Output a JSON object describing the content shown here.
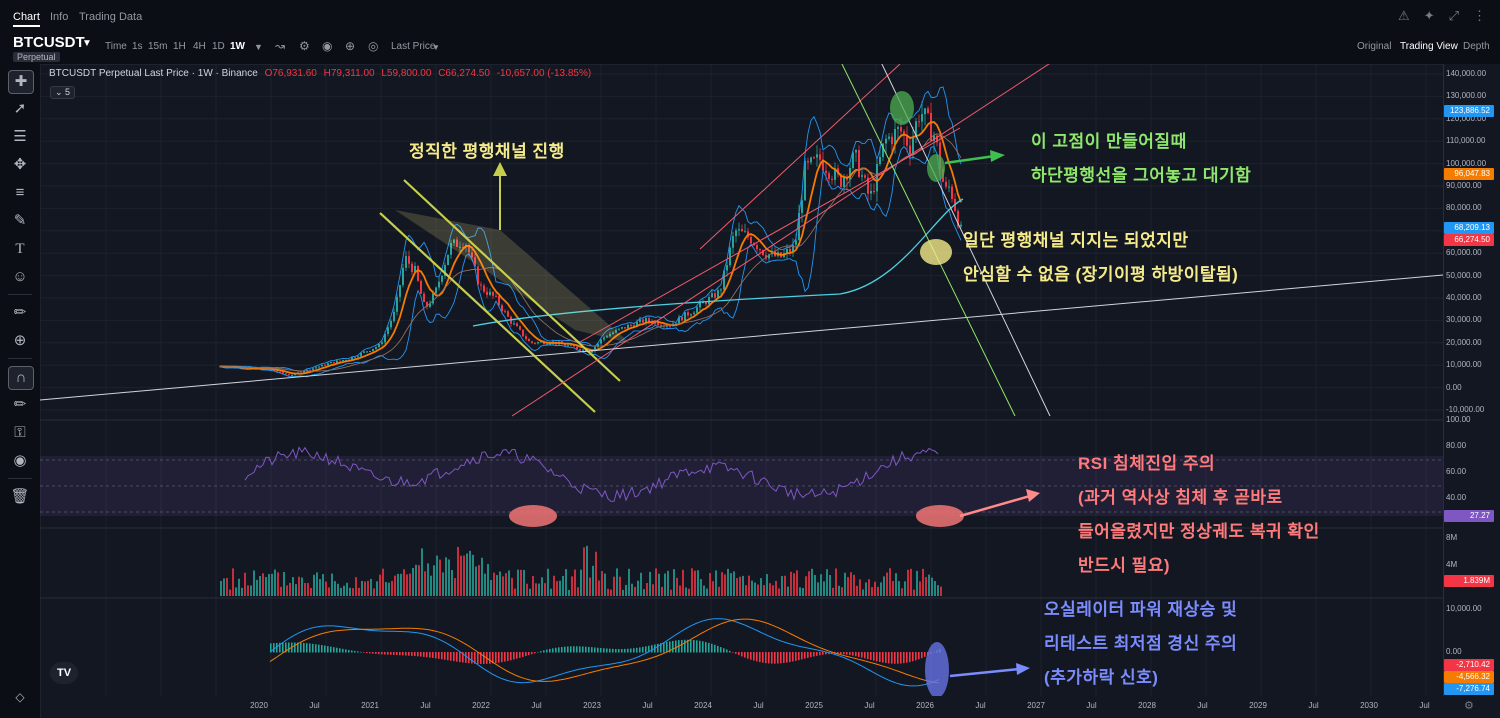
{
  "tabs": [
    {
      "label": "Chart"
    },
    {
      "label": "Info"
    },
    {
      "label": "Trading Data"
    }
  ],
  "header_icons": [
    "bell-icon",
    "sparkle-icon",
    "expand-icon",
    "more-icon"
  ],
  "toolbar": {
    "symbol": "BTCUSDT",
    "badge": "Perpetual",
    "time_label": "Time",
    "intervals": [
      "1s",
      "15m",
      "1H",
      "4H",
      "1D",
      "1W"
    ],
    "active_interval": "1W",
    "price_type": "Last Price",
    "views": [
      "Original",
      "Trading View",
      "Depth"
    ],
    "active_view": "Trading View"
  },
  "legend": {
    "title": "BTCUSDT Perpetual Last Price · 1W · Binance",
    "open": "O76,931.60",
    "high": "H79,311.00",
    "low": "L59,800.00",
    "close": "C66,274.50",
    "change": "-10,657.00 (-13.85%)",
    "indicator_count": "5"
  },
  "price_axis": {
    "ticks": [
      "140,000.00",
      "130,000.00",
      "120,000.00",
      "110,000.00",
      "100,000.00",
      "90,000.00",
      "80,000.00",
      "70,000.00",
      "60,000.00",
      "50,000.00",
      "40,000.00",
      "30,000.00",
      "20,000.00",
      "10,000.00",
      "0.00",
      "-10,000.00"
    ],
    "badges": [
      {
        "value": "123,886.52",
        "color": "#2196f3"
      },
      {
        "value": "96,047.83",
        "color": "#f57c00"
      },
      {
        "value": "68,209.13",
        "color": "#2196f3"
      },
      {
        "value": "66,274.50",
        "color": "#f23645"
      }
    ]
  },
  "rsi_axis": {
    "ticks": [
      "100.00",
      "80.00",
      "60.00",
      "40.00"
    ],
    "badge": "27.27",
    "badge_color": "#7e57c2"
  },
  "volume_axis": {
    "ticks": [
      "8M",
      "4M"
    ],
    "badge": "1.839M",
    "badge_color": "#f23645"
  },
  "osc_axis": {
    "ticks": [
      "10,000.00",
      "0.00"
    ],
    "badges": [
      {
        "value": "-2,710.42",
        "color": "#f23645"
      },
      {
        "value": "-4,566.32",
        "color": "#f57c00"
      },
      {
        "value": "-7,276.74",
        "color": "#2196f3"
      }
    ]
  },
  "date_axis": [
    "2020",
    "Jul",
    "2021",
    "Jul",
    "2022",
    "Jul",
    "2023",
    "Jul",
    "2024",
    "Jul",
    "2025",
    "Jul",
    "2026",
    "Jul",
    "2027",
    "Jul",
    "2028",
    "Jul",
    "2029",
    "Jul",
    "2030",
    "Jul"
  ],
  "annotations": {
    "channel_note": "정직한 평행채널 진행",
    "high_note_1": "이 고점이 만들어질때",
    "high_note_2": "하단평행선을 그어놓고 대기함",
    "support_note_1": "일단 평행채널 지지는 되었지만",
    "support_note_2": "안심할 수 없음 (장기이평 하방이탈됨)",
    "rsi_note_1": "RSI 침체진입 주의",
    "rsi_note_2": "(과거 역사상 침체 후 곧바로",
    "rsi_note_3": "들어올렸지만 정상궤도 복귀 확인",
    "rsi_note_4": "반드시 필요)",
    "osc_note_1": "오실레이터 파워 재상승 및",
    "osc_note_2": "리테스트 최저점 경신 주의",
    "osc_note_3": "(추가하락 신호)"
  },
  "colors": {
    "background": "#131722",
    "candle_up": "#26a69a",
    "candle_down": "#f23645",
    "ema_orange": "#f57c00",
    "bollinger": "#2196f3",
    "ma_teal": "#4dd0e1",
    "rsi": "#7e57c2",
    "annotation_yellow": "#f5eb8a",
    "annotation_green": "#8ee66a",
    "annotation_red": "#ff7b7b",
    "annotation_blue": "#7b8cff"
  },
  "logo_text": "TV"
}
